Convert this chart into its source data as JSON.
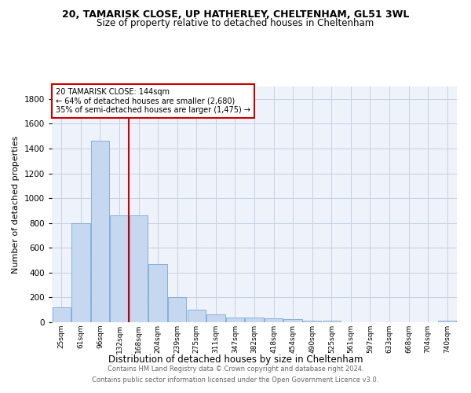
{
  "title1": "20, TAMARISK CLOSE, UP HATHERLEY, CHELTENHAM, GL51 3WL",
  "title2": "Size of property relative to detached houses in Cheltenham",
  "xlabel": "Distribution of detached houses by size in Cheltenham",
  "ylabel": "Number of detached properties",
  "categories": [
    "25sqm",
    "61sqm",
    "96sqm",
    "132sqm",
    "168sqm",
    "204sqm",
    "239sqm",
    "275sqm",
    "311sqm",
    "347sqm",
    "382sqm",
    "418sqm",
    "454sqm",
    "490sqm",
    "525sqm",
    "561sqm",
    "597sqm",
    "633sqm",
    "668sqm",
    "704sqm",
    "740sqm"
  ],
  "values": [
    120,
    795,
    1460,
    860,
    860,
    470,
    200,
    100,
    65,
    40,
    40,
    30,
    25,
    15,
    10,
    0,
    0,
    0,
    0,
    0,
    15
  ],
  "bar_color": "#c5d8f0",
  "bar_edge_color": "#7aa8d4",
  "vline_index": 3,
  "vline_color": "#cc0000",
  "annotation_label": "20 TAMARISK CLOSE: 144sqm",
  "annotation_line1": "← 64% of detached houses are smaller (2,680)",
  "annotation_line2": "35% of semi-detached houses are larger (1,475) →",
  "ylim": [
    0,
    1900
  ],
  "yticks": [
    0,
    200,
    400,
    600,
    800,
    1000,
    1200,
    1400,
    1600,
    1800
  ],
  "footer_line1": "Contains HM Land Registry data © Crown copyright and database right 2024.",
  "footer_line2": "Contains public sector information licensed under the Open Government Licence v3.0.",
  "background_color": "#eef2fa",
  "grid_color": "#c8d0e0"
}
